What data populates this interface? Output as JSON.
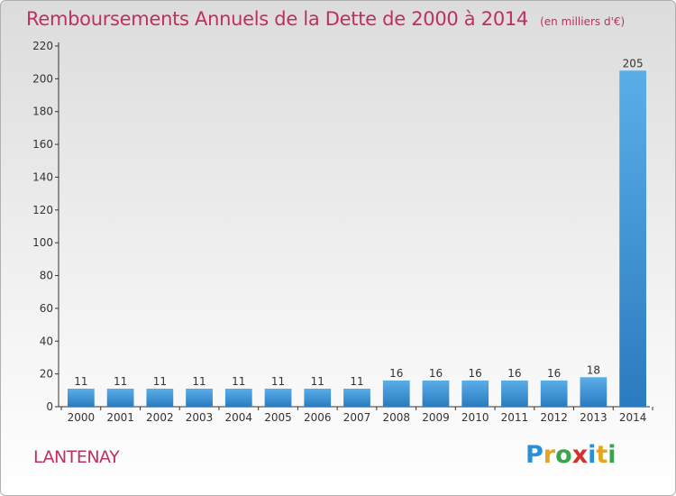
{
  "title": "Remboursements Annuels de la Dette de 2000 à 2014",
  "unit_note": "(en milliers d'€)",
  "commune": "LANTENAY",
  "logo": "Proxiti",
  "colors": {
    "title": "#c0305c",
    "bar_light": "#5aaee8",
    "bar_dark": "#2a7bbf"
  },
  "chart_data": {
    "type": "bar",
    "title": "Remboursements Annuels de la Dette de 2000 à 2014",
    "xlabel": "",
    "ylabel": "",
    "ylim": [
      0,
      220
    ],
    "yticks": [
      0,
      20,
      40,
      60,
      80,
      100,
      120,
      140,
      160,
      180,
      200,
      220
    ],
    "grid": false,
    "categories": [
      "2000",
      "2001",
      "2002",
      "2003",
      "2004",
      "2005",
      "2006",
      "2007",
      "2008",
      "2009",
      "2010",
      "2011",
      "2012",
      "2013",
      "2014"
    ],
    "values": [
      11,
      11,
      11,
      11,
      11,
      11,
      11,
      11,
      16,
      16,
      16,
      16,
      16,
      18,
      205
    ]
  }
}
